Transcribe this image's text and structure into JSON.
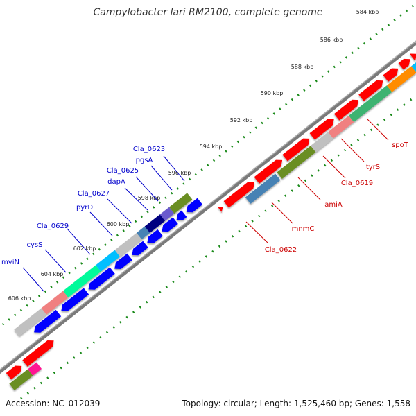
{
  "title": "Campylobacter lari RM2100, complete genome",
  "footer": {
    "accession": "Accession: NC_012039",
    "stats": "Topology: circular; Length: 1,525,460 bp; Genes: 1,558"
  },
  "colors": {
    "backbone": "#888888",
    "tick_dots": "#1a8a1a",
    "forward_gene": "#ff0000",
    "reverse_gene": "#0000ff",
    "forward_label": "#cc0000",
    "reverse_label": "#0000cc"
  },
  "scale_ticks": [
    "584 kbp",
    "586 kbp",
    "588 kbp",
    "590 kbp",
    "592 kbp",
    "594 kbp",
    "596 kbp",
    "598 kbp",
    "600 kbp",
    "602 kbp",
    "604 kbp",
    "606 kbp"
  ],
  "forward_labels": [
    "spoT",
    "tyrS",
    "Cla_0619",
    "amiA",
    "mnmC",
    "Cla_0622"
  ],
  "reverse_labels": [
    "Cla_0623",
    "pgsA",
    "Cla_0625",
    "dapA",
    "Cla_0627",
    "pyrD",
    "Cla_0629",
    "cysS",
    "mviN"
  ]
}
